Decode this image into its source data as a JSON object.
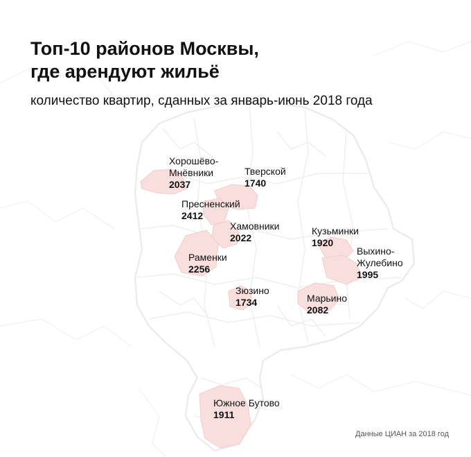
{
  "title": {
    "line1": "Топ-10 районов Москвы,",
    "line2": "где арендуют жильё"
  },
  "subtitle": "количество квартир, сданных за январь-июнь 2018 года",
  "source": "Данные ЦИАН за 2018 год",
  "colors": {
    "highlight": "#f9dede",
    "borders": "#ececec",
    "text": "#111111"
  },
  "districts": [
    {
      "id": "khoroshevo",
      "name_lines": [
        "Хорошёво-",
        "Мнёвники"
      ],
      "count": "2037"
    },
    {
      "id": "tverskoy",
      "name_lines": [
        "Тверской"
      ],
      "count": "1740"
    },
    {
      "id": "presnensky",
      "name_lines": [
        "Пресненский"
      ],
      "count": "2412"
    },
    {
      "id": "khamovniki",
      "name_lines": [
        "Хамовники"
      ],
      "count": "2022"
    },
    {
      "id": "kuzminki",
      "name_lines": [
        "Кузьминки"
      ],
      "count": "1920"
    },
    {
      "id": "vykhino",
      "name_lines": [
        "Выхино-",
        "Жулебино"
      ],
      "count": "1995"
    },
    {
      "id": "ramenki",
      "name_lines": [
        "Раменки"
      ],
      "count": "2256"
    },
    {
      "id": "zyuzino",
      "name_lines": [
        "Зюзино"
      ],
      "count": "1734"
    },
    {
      "id": "marino",
      "name_lines": [
        "Марьино"
      ],
      "count": "2082"
    },
    {
      "id": "butovo",
      "name_lines": [
        "Южное Бутово"
      ],
      "count": "1911"
    }
  ]
}
